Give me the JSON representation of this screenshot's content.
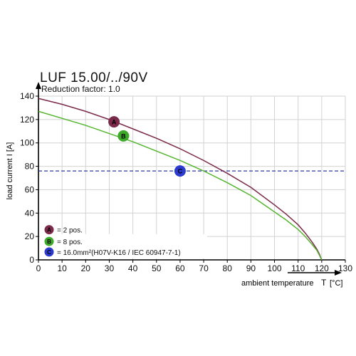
{
  "chart_data": {
    "type": "line",
    "title": "LUF 15.00/../90V",
    "subtitle": "Reduction factor: 1.0",
    "xlabel": "ambient temperature",
    "xlabel_symbol": "T",
    "xlabel_unit": "[°C]",
    "ylabel": "load current I [A]",
    "xlim": [
      0,
      130
    ],
    "ylim": [
      0,
      140
    ],
    "xticks": [
      0,
      10,
      20,
      30,
      40,
      50,
      60,
      70,
      80,
      90,
      100,
      110,
      120,
      130
    ],
    "yticks": [
      0,
      20,
      40,
      60,
      80,
      100,
      120,
      140
    ],
    "grid": true,
    "series": [
      {
        "marker": "A",
        "color": "#7b2a4a",
        "x": [
          0,
          10,
          20,
          30,
          40,
          50,
          60,
          70,
          80,
          90,
          100,
          105,
          110,
          113,
          116,
          118,
          119,
          120
        ],
        "y": [
          138,
          133,
          127,
          120,
          112,
          104,
          95,
          85,
          74,
          62,
          47,
          39,
          30,
          23,
          15,
          9,
          5,
          0
        ]
      },
      {
        "marker": "B",
        "color": "#56b530",
        "x": [
          0,
          10,
          20,
          30,
          40,
          50,
          60,
          70,
          80,
          90,
          100,
          105,
          110,
          113,
          116,
          118,
          119,
          120
        ],
        "y": [
          127,
          121,
          115,
          108,
          101,
          93,
          85,
          76,
          66,
          55,
          41,
          34,
          26,
          20,
          13,
          8,
          4,
          0
        ]
      }
    ],
    "reference_line": {
      "marker": "C",
      "y": 76,
      "color": "#2b3aa8",
      "style": "dashed"
    },
    "point_markers": [
      {
        "label": "A",
        "x": 32,
        "y": 118,
        "color": "#7b2a4a"
      },
      {
        "label": "B",
        "x": 36,
        "y": 106,
        "color": "#3daa2a"
      },
      {
        "label": "C",
        "x": 60,
        "y": 76,
        "color": "#2b3bd0"
      }
    ],
    "legend": {
      "position": "bottom-left",
      "entries": [
        {
          "label": "A",
          "text": "= 2 pos.",
          "color": "#7b2a4a"
        },
        {
          "label": "B",
          "text": "= 8 pos.",
          "color": "#3daa2a"
        },
        {
          "label": "C",
          "text": "= 16.0mm²(H07V-K16 / IEC 60947-7-1)",
          "color": "#2b3bd0"
        }
      ]
    }
  }
}
